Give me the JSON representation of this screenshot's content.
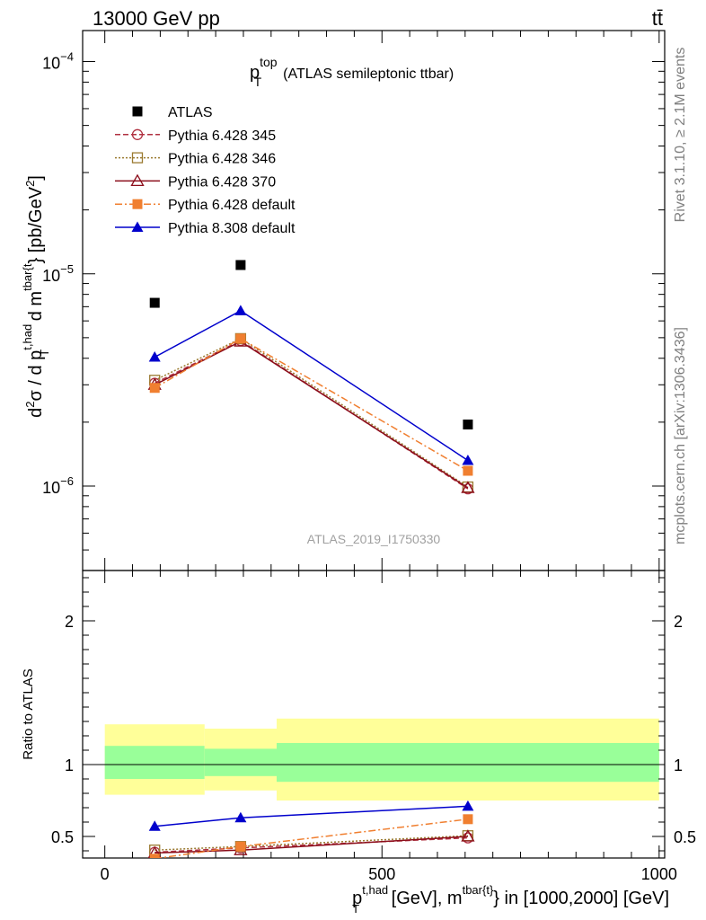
{
  "header": {
    "energy_label": "13000 GeV pp",
    "process_label": "tt̄"
  },
  "side": {
    "rivet_label": "Rivet 3.1.10, ≥ 2.1M events",
    "site_label": "mcplots.cern.ch [arXiv:1306.3436]"
  },
  "chart_data": [
    {
      "type": "scatter",
      "title": "p_T^top (ATLAS semileptonic ttbar)",
      "title_main": "p",
      "title_sub": "T",
      "title_sup": "top",
      "title_rest": "(ATLAS semileptonic ttbar)",
      "watermark": "ATLAS_2019_I1750330",
      "ylabel": "d²σ / d p_T^{t,had} d m^{tbar{t}} [pb/GeV²]",
      "yscale": "log",
      "ylim": [
        4e-07,
        0.00014
      ],
      "xlim": [
        -40,
        1010
      ],
      "yticks": [
        {
          "value": 1e-06,
          "base": "10",
          "exp": "−6"
        },
        {
          "value": 1e-05,
          "base": "10",
          "exp": "−5"
        },
        {
          "value": 0.0001,
          "base": "10",
          "exp": "−4"
        }
      ],
      "legend_position": "top-left",
      "x": [
        90,
        245,
        655
      ],
      "series": [
        {
          "name": "ATLAS",
          "values": [
            7.3e-06,
            1.1e-05,
            1.95e-06
          ],
          "color": "#000000",
          "marker": "square-filled",
          "line": "none"
        },
        {
          "name": "Pythia 6.428 345",
          "values": [
            3.05e-06,
            4.85e-06,
            9.7e-07
          ],
          "color": "#b03040",
          "marker": "circle-open",
          "line": "dashed"
        },
        {
          "name": "Pythia 6.428 346",
          "values": [
            3.15e-06,
            4.95e-06,
            9.9e-07
          ],
          "color": "#9a7a30",
          "marker": "square-open",
          "line": "dotted"
        },
        {
          "name": "Pythia 6.428 370",
          "values": [
            3e-06,
            4.8e-06,
            9.8e-07
          ],
          "color": "#8b0d1a",
          "marker": "triangle-open",
          "line": "solid"
        },
        {
          "name": "Pythia 6.428 default",
          "values": [
            2.9e-06,
            4.95e-06,
            1.18e-06
          ],
          "color": "#f07f30",
          "marker": "square-filled",
          "line": "dashdot"
        },
        {
          "name": "Pythia 8.308 default",
          "values": [
            4.05e-06,
            6.7e-06,
            1.32e-06
          ],
          "color": "#0000cc",
          "marker": "triangle-filled",
          "line": "solid"
        }
      ]
    },
    {
      "type": "scatter",
      "ylabel": "Ratio to ATLAS",
      "xlabel": "p_T^{t,had} [GeV], m^{tbar{t}} in [1000,2000] [GeV]",
      "xlabel_p": "p",
      "xlabel_sub": "T",
      "xlabel_sup": "t,had",
      "xlabel_mid": " [GeV], m",
      "xlabel_sup2": "tbar{t}",
      "xlabel_end": "} in [1000,2000] [GeV]",
      "xlim": [
        -40,
        1010
      ],
      "ylim": [
        0.35,
        2.35
      ],
      "xticks": [
        0,
        500,
        1000
      ],
      "xtick_labels": [
        "0",
        "500",
        "1000"
      ],
      "yticks": [
        0.5,
        1,
        2
      ],
      "ytick_labels": [
        "0.5",
        "1",
        "2"
      ],
      "bands": [
        {
          "x0": 0,
          "x1": 180,
          "yellow": [
            0.79,
            1.28
          ],
          "green": [
            0.9,
            1.13
          ]
        },
        {
          "x0": 180,
          "x1": 310,
          "yellow": [
            0.82,
            1.25
          ],
          "green": [
            0.92,
            1.11
          ]
        },
        {
          "x0": 310,
          "x1": 1000,
          "yellow": [
            0.75,
            1.32
          ],
          "green": [
            0.88,
            1.15
          ]
        }
      ],
      "x": [
        90,
        245,
        655
      ],
      "series": [
        {
          "name": "Pythia 6.428 345",
          "values": [
            0.39,
            0.42,
            0.49
          ],
          "color": "#b03040",
          "marker": "circle-open",
          "line": "dashed"
        },
        {
          "name": "Pythia 6.428 346",
          "values": [
            0.405,
            0.43,
            0.505
          ],
          "color": "#9a7a30",
          "marker": "square-open",
          "line": "dotted"
        },
        {
          "name": "Pythia 6.428 370",
          "values": [
            0.385,
            0.405,
            0.5
          ],
          "color": "#8b0d1a",
          "marker": "triangle-open",
          "line": "solid"
        },
        {
          "name": "Pythia 6.428 default",
          "values": [
            0.345,
            0.43,
            0.62
          ],
          "color": "#f07f30",
          "marker": "square-filled",
          "line": "dashdot"
        },
        {
          "name": "Pythia 8.308 default",
          "values": [
            0.57,
            0.63,
            0.71
          ],
          "color": "#0000cc",
          "marker": "triangle-filled",
          "line": "solid"
        }
      ]
    }
  ]
}
